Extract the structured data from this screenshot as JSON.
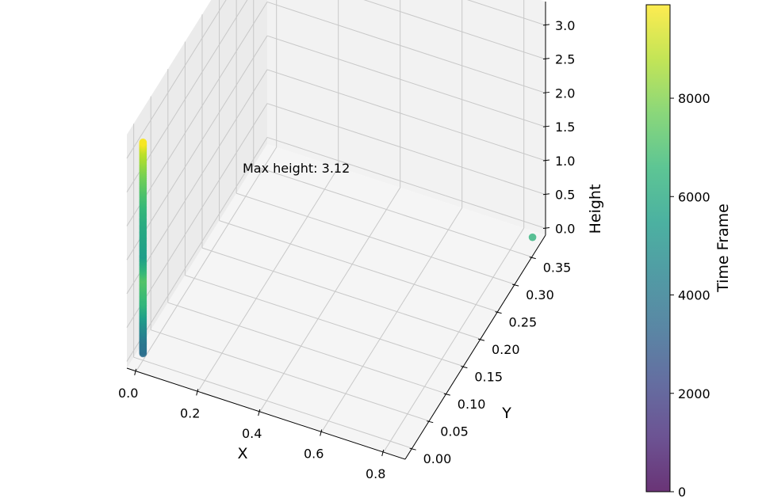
{
  "chart_data": {
    "type": "scatter",
    "projection": "3d",
    "xlabel": "X",
    "ylabel": "Y",
    "zlabel": "Height",
    "xlim": [
      -0.03,
      0.87
    ],
    "ylim": [
      -0.02,
      0.39
    ],
    "zlim": [
      -0.1,
      3.35
    ],
    "x_ticks": [
      {
        "v": 0.0,
        "label": "0.0"
      },
      {
        "v": 0.2,
        "label": "0.2"
      },
      {
        "v": 0.4,
        "label": "0.4"
      },
      {
        "v": 0.6,
        "label": "0.6"
      },
      {
        "v": 0.8,
        "label": "0.8"
      }
    ],
    "y_ticks": [
      {
        "v": 0.0,
        "label": "0.00"
      },
      {
        "v": 0.05,
        "label": "0.05"
      },
      {
        "v": 0.1,
        "label": "0.10"
      },
      {
        "v": 0.15,
        "label": "0.15"
      },
      {
        "v": 0.2,
        "label": "0.20"
      },
      {
        "v": 0.25,
        "label": "0.25"
      },
      {
        "v": 0.3,
        "label": "0.30"
      },
      {
        "v": 0.35,
        "label": "0.35"
      }
    ],
    "z_ticks": [
      {
        "v": 0.0,
        "label": "0.0"
      },
      {
        "v": 0.5,
        "label": "0.5"
      },
      {
        "v": 1.0,
        "label": "1.0"
      },
      {
        "v": 1.5,
        "label": "1.5"
      },
      {
        "v": 2.0,
        "label": "2.0"
      },
      {
        "v": 2.5,
        "label": "2.5"
      },
      {
        "v": 3.0,
        "label": "3.0"
      }
    ],
    "grid": true,
    "colormap": "viridis",
    "marker_alpha": 0.8,
    "trajectory": [
      {
        "x": 0.0,
        "y": 0.0,
        "z": 0.0,
        "t": 3600
      },
      {
        "x": 0.0,
        "y": 0.0,
        "z": 0.2,
        "t": 4000
      },
      {
        "x": 0.0,
        "y": 0.0,
        "z": 0.45,
        "t": 5000
      },
      {
        "x": 0.0,
        "y": 0.0,
        "z": 0.75,
        "t": 6500
      },
      {
        "x": 0.0,
        "y": 0.0,
        "z": 1.1,
        "t": 7200
      },
      {
        "x": 0.0,
        "y": 0.0,
        "z": 1.45,
        "t": 5500
      },
      {
        "x": 0.0,
        "y": 0.0,
        "z": 1.9,
        "t": 6000
      },
      {
        "x": 0.0,
        "y": 0.0,
        "z": 2.35,
        "t": 7000
      },
      {
        "x": 0.0,
        "y": 0.0,
        "z": 2.7,
        "t": 8000
      },
      {
        "x": 0.0,
        "y": 0.0,
        "z": 3.0,
        "t": 9000
      },
      {
        "x": 0.0,
        "y": 0.0,
        "z": 3.12,
        "t": 9800
      }
    ],
    "extra_points": [
      {
        "x": 0.85,
        "y": 0.37,
        "z": 0.0,
        "t": 6400
      }
    ],
    "annotation": {
      "text": "Max height: 3.12",
      "x": 0.0,
      "y": 0.0,
      "z": 3.12
    },
    "colorbar": {
      "label": "Time Frame",
      "min": 0,
      "max": 9900,
      "ticks": [
        {
          "v": 0,
          "label": "0"
        },
        {
          "v": 2000,
          "label": "2000"
        },
        {
          "v": 4000,
          "label": "4000"
        },
        {
          "v": 6000,
          "label": "6000"
        },
        {
          "v": 8000,
          "label": "8000"
        }
      ]
    }
  }
}
